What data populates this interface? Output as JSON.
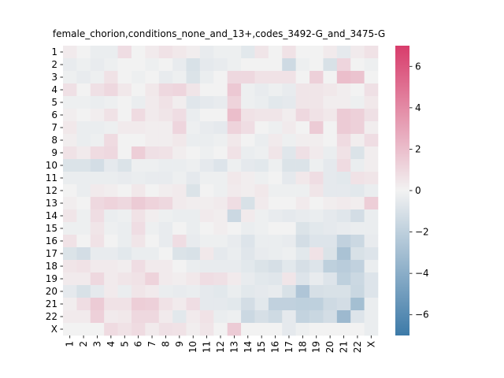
{
  "chart_data": {
    "type": "heatmap",
    "title": "female_chorion,conditions_none_and_13+,codes_3492-G_and_3475-G",
    "xlabel": "",
    "ylabel": "",
    "rows": [
      "1",
      "2",
      "3",
      "4",
      "5",
      "6",
      "7",
      "8",
      "9",
      "10",
      "11",
      "12",
      "13",
      "14",
      "15",
      "16",
      "17",
      "18",
      "19",
      "20",
      "21",
      "22",
      "X"
    ],
    "columns": [
      "1",
      "2",
      "3",
      "4",
      "5",
      "6",
      "7",
      "8",
      "9",
      "10",
      "11",
      "12",
      "13",
      "14",
      "15",
      "16",
      "17",
      "18",
      "19",
      "20",
      "21",
      "22",
      "X"
    ],
    "colorbar": {
      "min": -7,
      "max": 7,
      "ticks": [
        -6,
        -4,
        -2,
        0,
        2,
        4,
        6
      ],
      "colormap": "diverging",
      "low_color": "#3d7aa8",
      "mid_color": "#f2f2f2",
      "high_color": "#d83c6b"
    },
    "values": [
      [
        0.3,
        0.0,
        -0.3,
        -0.3,
        0.8,
        0.0,
        0.3,
        0.6,
        0.4,
        0.2,
        -0.4,
        -0.2,
        -0.2,
        -0.6,
        0.5,
        0.0,
        0.6,
        0.0,
        0.0,
        0.3,
        -0.5,
        0.3,
        0.6
      ],
      [
        -0.4,
        -0.2,
        -0.4,
        -0.2,
        0.0,
        0.0,
        -0.2,
        0.0,
        -0.4,
        -1.0,
        -0.5,
        -0.4,
        -0.2,
        0.0,
        0.0,
        0.0,
        -1.4,
        -0.2,
        0.0,
        -1.0,
        1.1,
        0.0,
        -0.2
      ],
      [
        -0.2,
        -0.4,
        -0.2,
        0.6,
        0.0,
        -0.2,
        0.0,
        -0.4,
        -0.2,
        -0.9,
        -0.3,
        0.0,
        1.0,
        1.0,
        0.6,
        0.6,
        0.6,
        0.0,
        1.3,
        0.0,
        2.0,
        1.8,
        0.0
      ],
      [
        0.7,
        0.0,
        0.7,
        1.0,
        0.4,
        0.0,
        0.4,
        1.0,
        1.1,
        0.5,
        0.0,
        0.0,
        1.6,
        -0.2,
        -0.4,
        -0.2,
        -0.4,
        0.5,
        0.5,
        0.4,
        0.2,
        0.0,
        0.7
      ],
      [
        -0.2,
        -0.2,
        -0.3,
        -0.2,
        0.0,
        -0.3,
        0.3,
        0.6,
        0.2,
        -0.7,
        -0.5,
        -0.4,
        1.2,
        -0.2,
        -0.3,
        -0.6,
        -0.5,
        0.5,
        0.5,
        0.2,
        0.2,
        -0.2,
        0.4
      ],
      [
        0.2,
        0.0,
        0.2,
        0.6,
        0.0,
        0.9,
        0.3,
        0.5,
        0.8,
        -0.3,
        0.0,
        0.0,
        2.0,
        0.6,
        0.5,
        0.5,
        0.2,
        1.0,
        0.6,
        0.4,
        1.5,
        1.3,
        0.7
      ],
      [
        0.4,
        -0.3,
        -0.3,
        -0.2,
        0.3,
        0.3,
        0.2,
        0.2,
        1.1,
        -0.2,
        -0.4,
        -0.5,
        1.2,
        0.8,
        0.0,
        -0.2,
        0.3,
        0.0,
        1.5,
        0.0,
        1.5,
        1.3,
        0.2
      ],
      [
        0.2,
        -0.3,
        -0.2,
        0.9,
        0.0,
        0.0,
        0.2,
        0.2,
        0.4,
        -0.3,
        -0.3,
        -0.2,
        0.4,
        0.0,
        -0.3,
        0.3,
        -0.2,
        0.2,
        0.2,
        0.0,
        0.9,
        0.2,
        0.8
      ],
      [
        0.6,
        0.3,
        0.9,
        1.0,
        0.0,
        1.4,
        0.7,
        0.6,
        0.2,
        0.0,
        -0.2,
        0.0,
        0.6,
        -0.3,
        -0.2,
        0.5,
        -0.7,
        0.7,
        0.3,
        -0.3,
        0.6,
        -0.9,
        0.2
      ],
      [
        -0.9,
        -0.9,
        -1.2,
        -0.5,
        -0.9,
        -0.2,
        -0.2,
        -0.3,
        -0.3,
        -0.2,
        -0.5,
        -0.8,
        -0.2,
        -0.5,
        -0.6,
        -0.2,
        -0.9,
        -0.9,
        -0.2,
        -0.5,
        0.9,
        -0.3,
        0.2
      ],
      [
        -0.3,
        -0.3,
        -0.3,
        -0.3,
        -0.4,
        -0.3,
        -0.4,
        -0.4,
        -0.2,
        -0.5,
        -0.2,
        -0.2,
        0.4,
        0.2,
        -0.2,
        0.0,
        -0.5,
        0.4,
        0.8,
        -0.5,
        -0.6,
        0.6,
        0.5
      ],
      [
        0.0,
        -0.3,
        0.3,
        0.2,
        0.0,
        0.4,
        0.0,
        0.2,
        0.3,
        -0.9,
        0.0,
        -0.2,
        0.3,
        0.2,
        0.4,
        -0.2,
        -0.2,
        -0.2,
        0.5,
        -0.5,
        -0.5,
        -0.6,
        -0.3
      ],
      [
        0.2,
        0.0,
        1.0,
        1.2,
        1.0,
        1.5,
        1.2,
        1.0,
        0.3,
        0.2,
        0.2,
        0.3,
        0.8,
        -1.0,
        0.3,
        0.0,
        0.0,
        0.3,
        0.0,
        0.2,
        0.3,
        0.2,
        1.4
      ],
      [
        0.5,
        -0.2,
        0.8,
        -0.3,
        -0.2,
        0.6,
        0.2,
        -0.2,
        -0.3,
        -0.3,
        0.3,
        0.2,
        -1.5,
        0.3,
        -0.2,
        -0.4,
        -0.5,
        -0.4,
        -0.3,
        -0.5,
        -0.7,
        -1.2,
        -0.3
      ],
      [
        -0.2,
        -0.2,
        0.5,
        -0.2,
        -0.3,
        0.8,
        -0.2,
        -0.4,
        0.0,
        -0.3,
        0.0,
        0.2,
        0.0,
        -0.3,
        -0.2,
        0.0,
        0.0,
        -0.9,
        -0.6,
        -0.5,
        -0.4,
        -0.3,
        -0.3
      ],
      [
        0.6,
        0.0,
        0.6,
        0.0,
        -0.3,
        0.5,
        0.0,
        -0.4,
        0.8,
        -0.4,
        -0.2,
        -0.2,
        -0.4,
        -0.8,
        -0.3,
        -0.3,
        -0.4,
        -1.2,
        -0.8,
        -0.8,
        -1.9,
        -1.5,
        -0.4
      ],
      [
        -0.9,
        -1.2,
        -0.4,
        -0.4,
        -0.6,
        -0.3,
        -0.3,
        0.0,
        -0.9,
        -1.0,
        0.4,
        -0.5,
        -0.3,
        -0.7,
        -0.4,
        -0.3,
        -0.2,
        -0.6,
        0.6,
        -0.9,
        -2.8,
        -1.0,
        -0.8
      ],
      [
        0.5,
        0.6,
        0.3,
        0.3,
        0.2,
        0.8,
        0.3,
        0.3,
        0.0,
        -0.3,
        -0.4,
        -0.4,
        -0.4,
        -0.6,
        -0.9,
        -1.1,
        -0.6,
        -1.1,
        -0.8,
        -2.0,
        -2.2,
        -1.9,
        -0.3
      ],
      [
        0.3,
        0.3,
        1.0,
        0.3,
        0.5,
        0.6,
        1.2,
        0.3,
        0.2,
        0.4,
        0.8,
        0.7,
        0.3,
        -0.4,
        -0.6,
        -0.7,
        0.5,
        -0.8,
        -0.4,
        -0.8,
        -2.0,
        -1.5,
        -0.8
      ],
      [
        -0.5,
        -1.0,
        -0.5,
        0.3,
        -0.3,
        0.5,
        0.3,
        -0.3,
        -0.4,
        -0.3,
        -0.5,
        -0.6,
        -0.3,
        -0.6,
        -0.5,
        -0.4,
        -1.0,
        -2.6,
        -1.1,
        -1.0,
        -1.0,
        -1.6,
        -0.8
      ],
      [
        0.2,
        0.8,
        1.5,
        0.6,
        0.6,
        1.4,
        1.3,
        0.6,
        0.3,
        0.8,
        -0.5,
        -0.5,
        -0.6,
        -1.2,
        -0.6,
        -1.9,
        -1.9,
        -2.0,
        -2.0,
        -1.4,
        -1.2,
        -3.0,
        -0.3
      ],
      [
        0.3,
        0.3,
        1.3,
        0.3,
        0.4,
        1.0,
        1.0,
        0.3,
        -0.6,
        0.3,
        0.6,
        -0.3,
        -0.2,
        -1.5,
        -1.1,
        -1.4,
        -0.5,
        -1.8,
        -1.6,
        -1.2,
        -3.3,
        -0.8,
        -0.3
      ],
      [
        0.0,
        0.0,
        0.0,
        0.9,
        0.6,
        0.9,
        0.3,
        0.7,
        0.6,
        0.2,
        0.5,
        0.0,
        1.5,
        0.0,
        0.0,
        0.0,
        -0.5,
        -0.2,
        0.0,
        0.0,
        0.0,
        0.0,
        -0.3
      ]
    ]
  }
}
